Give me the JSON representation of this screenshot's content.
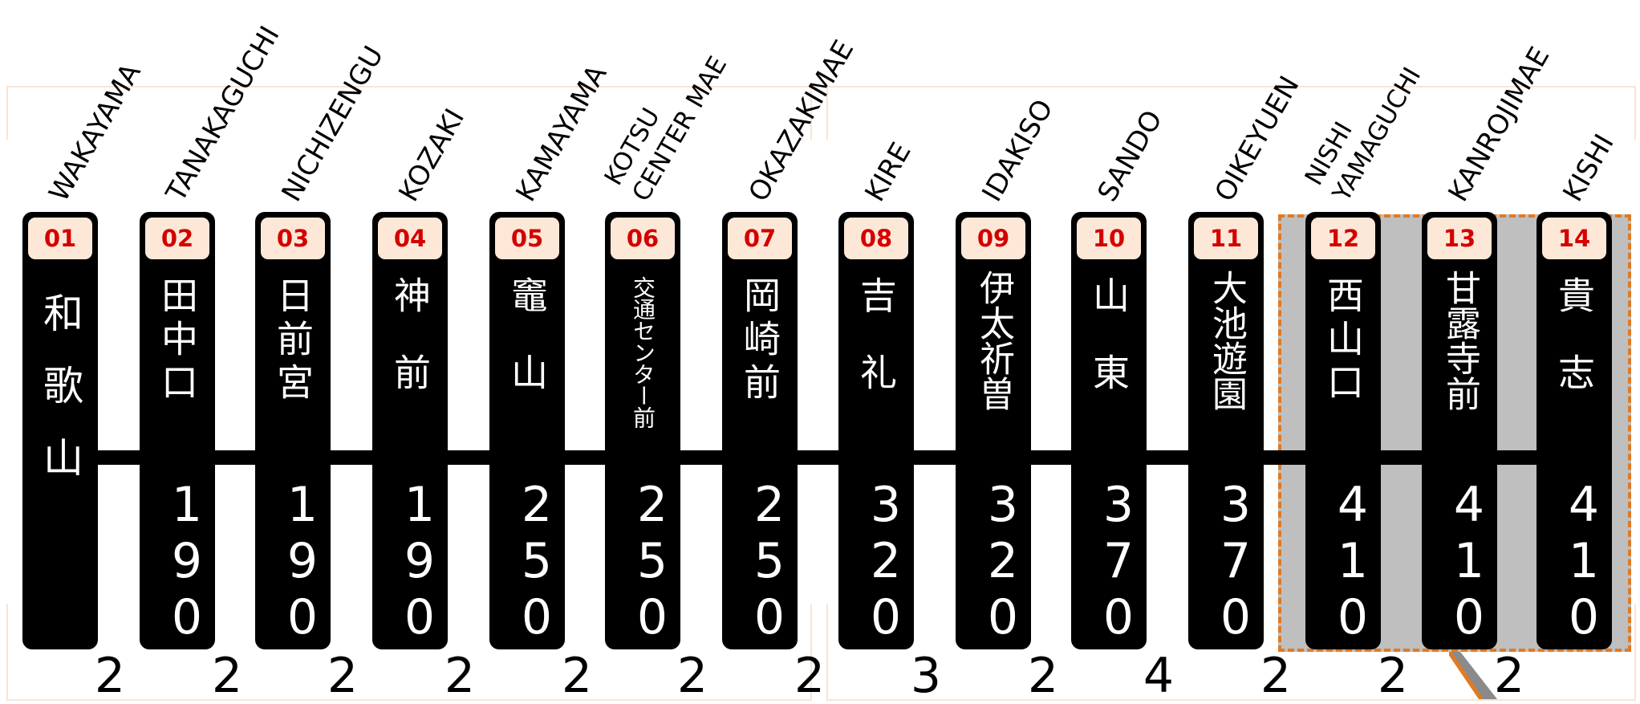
{
  "stations": [
    {
      "num": "01",
      "name": "和歌山",
      "romaji": "WAKAYAMA",
      "fare": ""
    },
    {
      "num": "02",
      "name": "田中口",
      "romaji": "TANAKAGUCHI",
      "fare": "190"
    },
    {
      "num": "03",
      "name": "日前宮",
      "romaji": "NICHIZENGU",
      "fare": "190"
    },
    {
      "num": "04",
      "name": "神前",
      "romaji": "KOZAKI",
      "fare": "190"
    },
    {
      "num": "05",
      "name": "竈山",
      "romaji": "KAMAYAMA",
      "fare": "250"
    },
    {
      "num": "06",
      "name": "交通センター前",
      "romaji": "KOTSU\nCENTER MAE",
      "fare": "250"
    },
    {
      "num": "07",
      "name": "岡崎前",
      "romaji": "OKAZAKIMAE",
      "fare": "250"
    },
    {
      "num": "08",
      "name": "吉礼",
      "romaji": "KIRE",
      "fare": "320"
    },
    {
      "num": "09",
      "name": "伊太祈曽",
      "romaji": "IDAKISO",
      "fare": "320"
    },
    {
      "num": "10",
      "name": "山東",
      "romaji": "SANDO",
      "fare": "370"
    },
    {
      "num": "11",
      "name": "大池遊園",
      "romaji": "OIKEYUEN",
      "fare": "370"
    },
    {
      "num": "12",
      "name": "西山口",
      "romaji": "NISHI\nYAMAGUCHI",
      "fare": "410"
    },
    {
      "num": "13",
      "name": "甘露寺前",
      "romaji": "KANROJIMAE",
      "fare": "410"
    },
    {
      "num": "14",
      "name": "貴志",
      "romaji": "KISHI",
      "fare": "410"
    }
  ],
  "gaps": [
    "2",
    "2",
    "2",
    "2",
    "2",
    "2",
    "2",
    "3",
    "2",
    "4",
    "2",
    "2",
    "2"
  ],
  "colors": {
    "pill": "#000000",
    "number_bg": "#fde8d8",
    "number_text": "#d40000",
    "zone_fill": "#bfbfbf",
    "zone_border": "#e07a22",
    "bracket": "#fbe3d2"
  }
}
